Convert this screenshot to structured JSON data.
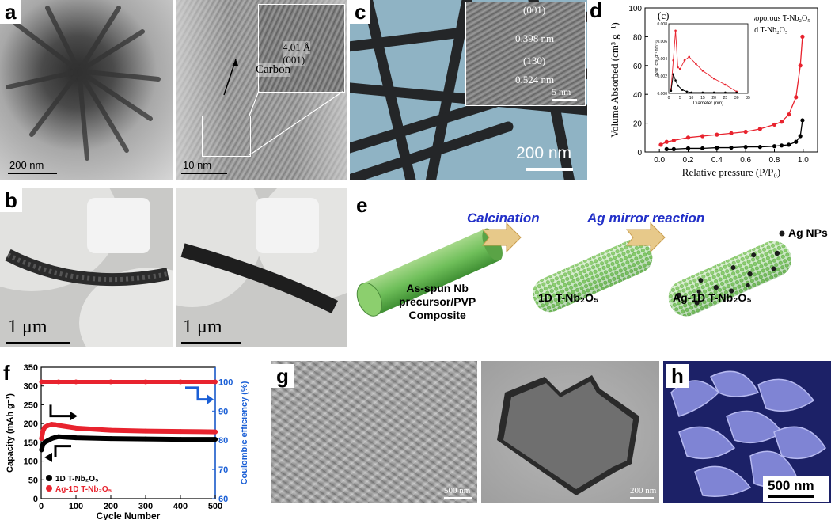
{
  "labels": {
    "a": "a",
    "b": "b",
    "c": "c",
    "d": "d",
    "e": "e",
    "f": "f",
    "g": "g",
    "h": "h"
  },
  "panel_a": {
    "scale1": "200 nm",
    "scale2": "10 nm",
    "inset_spacing": "4.01 Å",
    "inset_plane": "(001)",
    "carbon": "Carbon"
  },
  "panel_b": {
    "scale1": "1 μm",
    "scale2": "1 μm"
  },
  "panel_c": {
    "scale": "200 nm",
    "plane1": "(001)",
    "d1": "0.398 nm",
    "plane2": "(130)",
    "d2": "0.524 nm",
    "inset_scale": "5 nm"
  },
  "panel_d": {
    "inset_label": "(c)",
    "legend1": "Mesoporous T-Nb₂O₅",
    "legend2": "Solid T-Nb₂O₅",
    "xlabel": "Relative pressure (P/P₀)",
    "ylabel": "Volume Absorbed (cm³ g⁻¹)",
    "inset_xlabel": "Diameter (nm)",
    "inset_ylabel": "dv/dr (cm³ g⁻¹ nm⁻¹)",
    "colors": {
      "meso": "#e8232e",
      "solid": "#000000"
    }
  },
  "panel_e": {
    "step1": "Calcination",
    "step2": "Ag mirror reaction",
    "label1a": "As-spun Nb",
    "label1b": "precursor/PVP",
    "label1c": "Composite",
    "label2": "1D T-Nb₂O₅",
    "label3": "Ag-1D T-Nb₂O₅",
    "ag": "Ag NPs"
  },
  "panel_f": {
    "xlabel": "Cycle Number",
    "ylabel": "Capacity (mAh g⁻¹)",
    "y2label": "Coulombic efficiency (%)",
    "legend1": "1D T-Nb₂O₅",
    "legend2": "Ag-1D T-Nb₂O₅",
    "colors": {
      "ag": "#e8232e",
      "plain": "#000000",
      "ce": "#1a5fd6"
    }
  },
  "panel_g": {
    "scale1": "500 nm",
    "scale2": "200 nm"
  },
  "panel_h": {
    "scale": "500 nm"
  },
  "chart_data": [
    {
      "type": "line",
      "title": "",
      "xlabel": "Relative pressure (P/P₀)",
      "ylabel": "Volume Absorbed (cm³ g⁻¹)",
      "xlim": [
        -0.1,
        1.1
      ],
      "ylim": [
        0,
        100
      ],
      "xticks": [
        0.0,
        0.2,
        0.4,
        0.6,
        0.8,
        1.0
      ],
      "yticks": [
        0,
        20,
        40,
        60,
        80,
        100
      ],
      "legend": "top-right",
      "series": [
        {
          "name": "Mesoporous T-Nb₂O₅",
          "x": [
            0.01,
            0.05,
            0.1,
            0.2,
            0.3,
            0.4,
            0.5,
            0.6,
            0.7,
            0.8,
            0.85,
            0.9,
            0.95,
            0.98,
            0.995
          ],
          "y": [
            5,
            7,
            8,
            10,
            11,
            12,
            13,
            14,
            16,
            19,
            21,
            26,
            38,
            60,
            80
          ]
        },
        {
          "name": "Solid T-Nb₂O₅",
          "x": [
            0.05,
            0.1,
            0.2,
            0.3,
            0.4,
            0.5,
            0.6,
            0.7,
            0.8,
            0.85,
            0.9,
            0.95,
            0.98,
            0.995
          ],
          "y": [
            2,
            2,
            2.5,
            2.5,
            3,
            3,
            3.5,
            3.5,
            4,
            4.5,
            5,
            7,
            11,
            22
          ]
        }
      ]
    },
    {
      "type": "line",
      "title": "",
      "xlabel": "Diameter (nm)",
      "ylabel": "dv/dr (cm³ g⁻¹ nm⁻¹)",
      "xlim": [
        0,
        35
      ],
      "ylim": [
        0,
        0.008
      ],
      "series": [
        {
          "name": "Mesoporous T-Nb₂O₅",
          "x": [
            1,
            2,
            3,
            4,
            5,
            7,
            9,
            12,
            15,
            20,
            25,
            30
          ],
          "y": [
            0.0005,
            0.0038,
            0.0072,
            0.003,
            0.0028,
            0.0038,
            0.0042,
            0.0034,
            0.0026,
            0.0017,
            0.001,
            0.0002
          ]
        },
        {
          "name": "Solid T-Nb₂O₅",
          "x": [
            1,
            2,
            3,
            4,
            6,
            8,
            10,
            15,
            20,
            25,
            30
          ],
          "y": [
            0.0003,
            0.0022,
            0.0015,
            0.0009,
            0.0004,
            0.0002,
            0.0001,
            0.0001,
            0.0001,
            0.0001,
            0.0001
          ]
        }
      ]
    },
    {
      "type": "scatter",
      "title": "",
      "xlabel": "Cycle Number",
      "ylabel": "Capacity (mAh g⁻¹)",
      "y2label": "Coulombic efficiency (%)",
      "xlim": [
        0,
        500
      ],
      "ylim": [
        0,
        350
      ],
      "y2lim": [
        60,
        105
      ],
      "xticks": [
        0,
        100,
        200,
        300,
        400,
        500
      ],
      "yticks": [
        0,
        50,
        100,
        150,
        200,
        250,
        300,
        350
      ],
      "y2ticks": [
        60,
        70,
        80,
        90,
        100
      ],
      "legend": "bottom-left",
      "series": [
        {
          "name": "1D T-Nb₂O₅",
          "x": [
            1,
            5,
            10,
            20,
            30,
            40,
            50,
            100,
            200,
            300,
            400,
            500
          ],
          "y": [
            130,
            145,
            150,
            155,
            160,
            163,
            165,
            162,
            160,
            159,
            158,
            158
          ]
        },
        {
          "name": "Ag-1D T-Nb₂O₅",
          "x": [
            1,
            5,
            10,
            20,
            30,
            40,
            50,
            100,
            200,
            300,
            400,
            500
          ],
          "y": [
            160,
            180,
            190,
            195,
            198,
            197,
            195,
            188,
            182,
            180,
            179,
            178
          ]
        },
        {
          "name": "Coulombic efficiency",
          "x": [
            1,
            50,
            100,
            200,
            300,
            400,
            500
          ],
          "y": [
            100,
            100,
            100,
            100,
            100,
            100,
            100
          ]
        }
      ]
    }
  ]
}
